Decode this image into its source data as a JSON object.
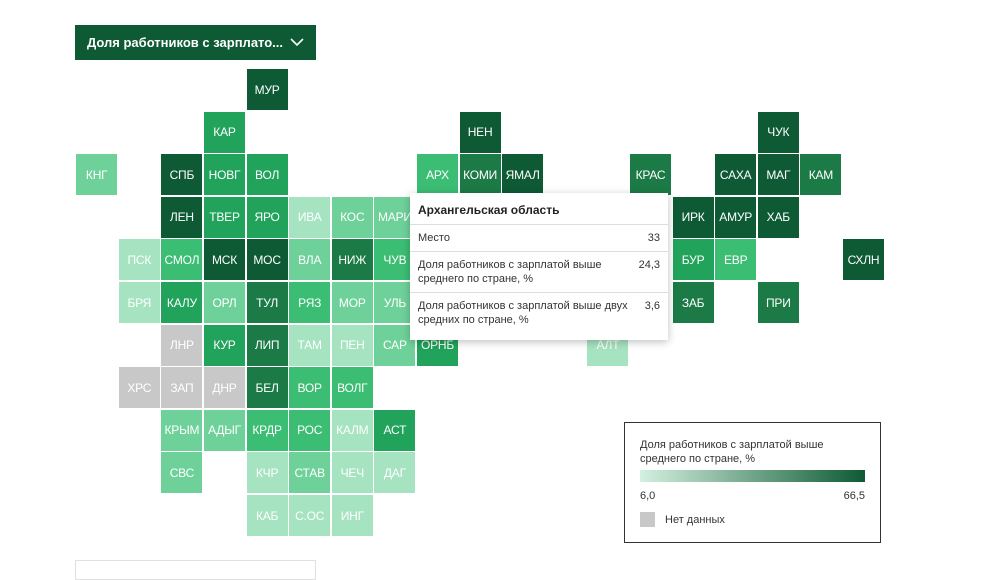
{
  "selector": {
    "label": "Доля работников с зарплато...",
    "icon": "chevron-down-icon"
  },
  "colors": {
    "c1": "#0e5a35",
    "c2": "#1b7a46",
    "c3": "#21a35b",
    "c4": "#3cbd74",
    "c5": "#6fd19a",
    "c6": "#a6e3c1",
    "nd": "#c8c8c8"
  },
  "regions": [
    {
      "code": "МУР",
      "col": 6,
      "row": 0,
      "color": "c1"
    },
    {
      "code": "КАР",
      "col": 5,
      "row": 1,
      "color": "c3"
    },
    {
      "code": "НЕН",
      "col": 11,
      "row": 1,
      "color": "c1"
    },
    {
      "code": "ЧУК",
      "col": 18,
      "row": 1,
      "color": "c1"
    },
    {
      "code": "КНГ",
      "col": 2,
      "row": 2,
      "color": "c5"
    },
    {
      "code": "СПБ",
      "col": 4,
      "row": 2,
      "color": "c1"
    },
    {
      "code": "НОВГ",
      "col": 5,
      "row": 2,
      "color": "c3"
    },
    {
      "code": "ВОЛ",
      "col": 6,
      "row": 2,
      "color": "c3"
    },
    {
      "code": "АРХ",
      "col": 10,
      "row": 2,
      "color": "c4"
    },
    {
      "code": "КОМИ",
      "col": 11,
      "row": 2,
      "color": "c2"
    },
    {
      "code": "ЯМАЛ",
      "col": 12,
      "row": 2,
      "color": "c1"
    },
    {
      "code": "КРАС",
      "col": 15,
      "row": 2,
      "color": "c2"
    },
    {
      "code": "САХА",
      "col": 17,
      "row": 2,
      "color": "c1"
    },
    {
      "code": "МАГ",
      "col": 18,
      "row": 2,
      "color": "c1"
    },
    {
      "code": "КАМ",
      "col": 19,
      "row": 2,
      "color": "c2"
    },
    {
      "code": "ЛЕН",
      "col": 4,
      "row": 3,
      "color": "c1"
    },
    {
      "code": "ТВЕР",
      "col": 5,
      "row": 3,
      "color": "c3"
    },
    {
      "code": "ЯРО",
      "col": 6,
      "row": 3,
      "color": "c3"
    },
    {
      "code": "ИВА",
      "col": 7,
      "row": 3,
      "color": "c6"
    },
    {
      "code": "КОС",
      "col": 8,
      "row": 3,
      "color": "c5"
    },
    {
      "code": "МАРИ",
      "col": 9,
      "row": 3,
      "color": "c5"
    },
    {
      "code": "ИРК",
      "col": 16,
      "row": 3,
      "color": "c1"
    },
    {
      "code": "АМУР",
      "col": 17,
      "row": 3,
      "color": "c1"
    },
    {
      "code": "ХАБ",
      "col": 18,
      "row": 3,
      "color": "c1"
    },
    {
      "code": "ПСК",
      "col": 3,
      "row": 4,
      "color": "c6"
    },
    {
      "code": "СМОЛ",
      "col": 4,
      "row": 4,
      "color": "c4"
    },
    {
      "code": "МСК",
      "col": 5,
      "row": 4,
      "color": "c1"
    },
    {
      "code": "МОС",
      "col": 6,
      "row": 4,
      "color": "c1"
    },
    {
      "code": "ВЛА",
      "col": 7,
      "row": 4,
      "color": "c5"
    },
    {
      "code": "НИЖ",
      "col": 8,
      "row": 4,
      "color": "c2"
    },
    {
      "code": "ЧУВ",
      "col": 9,
      "row": 4,
      "color": "c4"
    },
    {
      "code": "БУР",
      "col": 16,
      "row": 4,
      "color": "c3"
    },
    {
      "code": "ЕВР",
      "col": 17,
      "row": 4,
      "color": "c4"
    },
    {
      "code": "СХЛН",
      "col": 20,
      "row": 4,
      "color": "c1"
    },
    {
      "code": "БРЯ",
      "col": 3,
      "row": 5,
      "color": "c6"
    },
    {
      "code": "КАЛУ",
      "col": 4,
      "row": 5,
      "color": "c3"
    },
    {
      "code": "ОРЛ",
      "col": 5,
      "row": 5,
      "color": "c5"
    },
    {
      "code": "ТУЛ",
      "col": 6,
      "row": 5,
      "color": "c2"
    },
    {
      "code": "РЯЗ",
      "col": 7,
      "row": 5,
      "color": "c4"
    },
    {
      "code": "МОР",
      "col": 8,
      "row": 5,
      "color": "c5"
    },
    {
      "code": "УЛЬ",
      "col": 9,
      "row": 5,
      "color": "c5"
    },
    {
      "code": "ЗАБ",
      "col": 16,
      "row": 5,
      "color": "c2"
    },
    {
      "code": "ПРИ",
      "col": 18,
      "row": 5,
      "color": "c2"
    },
    {
      "code": "ЛНР",
      "col": 4,
      "row": 6,
      "color": "nd"
    },
    {
      "code": "КУР",
      "col": 5,
      "row": 6,
      "color": "c3"
    },
    {
      "code": "ЛИП",
      "col": 6,
      "row": 6,
      "color": "c2"
    },
    {
      "code": "ТАМ",
      "col": 7,
      "row": 6,
      "color": "c6"
    },
    {
      "code": "ПЕН",
      "col": 8,
      "row": 6,
      "color": "c6"
    },
    {
      "code": "САР",
      "col": 9,
      "row": 6,
      "color": "c5"
    },
    {
      "code": "ОРНБ",
      "col": 10,
      "row": 6,
      "color": "c3"
    },
    {
      "code": "АЛТ",
      "col": 14,
      "row": 6,
      "color": "c6"
    },
    {
      "code": "ХРС",
      "col": 3,
      "row": 7,
      "color": "nd"
    },
    {
      "code": "ЗАП",
      "col": 4,
      "row": 7,
      "color": "nd"
    },
    {
      "code": "ДНР",
      "col": 5,
      "row": 7,
      "color": "nd"
    },
    {
      "code": "БЕЛ",
      "col": 6,
      "row": 7,
      "color": "c2"
    },
    {
      "code": "ВОР",
      "col": 7,
      "row": 7,
      "color": "c4"
    },
    {
      "code": "ВОЛГ",
      "col": 8,
      "row": 7,
      "color": "c4"
    },
    {
      "code": "КРЫМ",
      "col": 4,
      "row": 8,
      "color": "c5"
    },
    {
      "code": "АДЫГ",
      "col": 5,
      "row": 8,
      "color": "c5"
    },
    {
      "code": "КРДР",
      "col": 6,
      "row": 8,
      "color": "c4"
    },
    {
      "code": "РОС",
      "col": 7,
      "row": 8,
      "color": "c4"
    },
    {
      "code": "КАЛМ",
      "col": 8,
      "row": 8,
      "color": "c6"
    },
    {
      "code": "АСТ",
      "col": 9,
      "row": 8,
      "color": "c3"
    },
    {
      "code": "СВС",
      "col": 4,
      "row": 9,
      "color": "c5"
    },
    {
      "code": "КЧР",
      "col": 6,
      "row": 9,
      "color": "c6"
    },
    {
      "code": "СТАВ",
      "col": 7,
      "row": 9,
      "color": "c5"
    },
    {
      "code": "ЧЕЧ",
      "col": 8,
      "row": 9,
      "color": "c6"
    },
    {
      "code": "ДАГ",
      "col": 9,
      "row": 9,
      "color": "c6"
    },
    {
      "code": "КАБ",
      "col": 6,
      "row": 10,
      "color": "c6"
    },
    {
      "code": "С.ОС",
      "col": 7,
      "row": 10,
      "color": "c6"
    },
    {
      "code": "ИНГ",
      "col": 8,
      "row": 10,
      "color": "c6"
    }
  ],
  "tooltip": {
    "title": "Архангельская область",
    "rows": [
      {
        "label": "Место",
        "value": "33"
      },
      {
        "label": "Доля работников с зарплатой выше среднего по стране, %",
        "value": "24,3"
      },
      {
        "label": "Доля работников с зарплатой выше двух средних по стране, %",
        "value": "3,6"
      }
    ]
  },
  "legend": {
    "title": "Доля работников с зарплатой выше среднего по стране, %",
    "min": "6,0",
    "max": "66,5",
    "no_data": "Нет данных"
  }
}
